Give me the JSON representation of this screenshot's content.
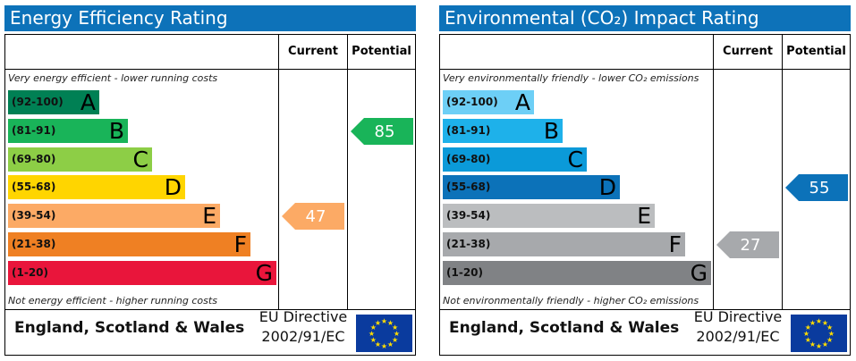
{
  "chart_data": [
    {
      "type": "bar",
      "title": "Energy Efficiency Rating",
      "columns": {
        "current": "Current",
        "potential": "Potential"
      },
      "caption_top": "Very energy efficient - lower running costs",
      "caption_bottom": "Not energy efficient - higher running costs",
      "bands": [
        {
          "range": "(92-100)",
          "letter": "A",
          "color": "#008054"
        },
        {
          "range": "(81-91)",
          "letter": "B",
          "color": "#19b459"
        },
        {
          "range": "(69-80)",
          "letter": "C",
          "color": "#8dce46"
        },
        {
          "range": "(55-68)",
          "letter": "D",
          "color": "#ffd500"
        },
        {
          "range": "(39-54)",
          "letter": "E",
          "color": "#fcaa65"
        },
        {
          "range": "(21-38)",
          "letter": "F",
          "color": "#ef8023"
        },
        {
          "range": "(1-20)",
          "letter": "G",
          "color": "#e9153b"
        }
      ],
      "current": {
        "value": 47,
        "band": "E",
        "color": "#fcaa65"
      },
      "potential": {
        "value": 85,
        "band": "B",
        "color": "#19b459"
      },
      "title_color": "#0d72b9",
      "footer": {
        "region": "England, Scotland & Wales",
        "directive_line1": "EU Directive",
        "directive_line2": "2002/91/EC"
      }
    },
    {
      "type": "bar",
      "title": "Environmental (CO₂) Impact Rating",
      "columns": {
        "current": "Current",
        "potential": "Potential"
      },
      "caption_top": "Very environmentally friendly - lower CO₂ emissions",
      "caption_bottom": "Not environmentally friendly - higher CO₂ emissions",
      "bands": [
        {
          "range": "(92-100)",
          "letter": "A",
          "color": "#6dcff6"
        },
        {
          "range": "(81-91)",
          "letter": "B",
          "color": "#1eb1ea"
        },
        {
          "range": "(69-80)",
          "letter": "C",
          "color": "#0b9ad9"
        },
        {
          "range": "(55-68)",
          "letter": "D",
          "color": "#0c72b9"
        },
        {
          "range": "(39-54)",
          "letter": "E",
          "color": "#bbbdbf"
        },
        {
          "range": "(21-38)",
          "letter": "F",
          "color": "#a7a9ac"
        },
        {
          "range": "(1-20)",
          "letter": "G",
          "color": "#808285"
        }
      ],
      "current": {
        "value": 27,
        "band": "F",
        "color": "#a7a9ac"
      },
      "potential": {
        "value": 55,
        "band": "D",
        "color": "#0c72b9"
      },
      "title_color": "#0d72b9",
      "footer": {
        "region": "England, Scotland & Wales",
        "directive_line1": "EU Directive",
        "directive_line2": "2002/91/EC"
      }
    }
  ]
}
